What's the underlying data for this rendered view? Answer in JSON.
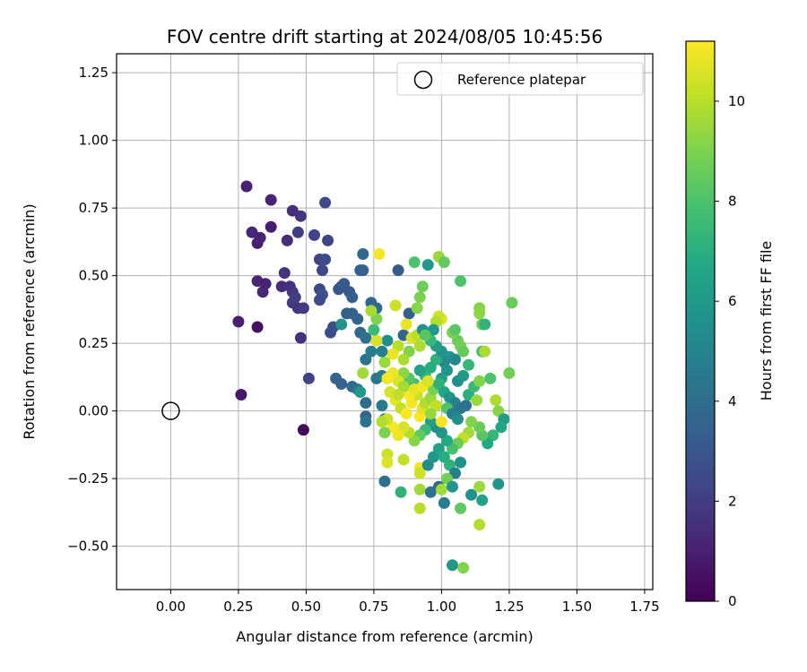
{
  "chart_data": {
    "type": "scatter",
    "title": "FOV centre drift starting at 2024/08/05 10:45:56",
    "xlabel": "Angular distance from reference (arcmin)",
    "ylabel": "Rotation from reference (arcmin)",
    "xlim": [
      -0.2,
      1.78
    ],
    "ylim": [
      -0.66,
      1.32
    ],
    "xticks": [
      "0.00",
      "0.25",
      "0.50",
      "0.75",
      "1.00",
      "1.25",
      "1.50",
      "1.75"
    ],
    "yticks": [
      "−0.50",
      "−0.25",
      "0.00",
      "0.25",
      "0.50",
      "0.75",
      "1.00",
      "1.25"
    ],
    "grid": true,
    "legend": {
      "placement": "top-right",
      "entries": [
        {
          "label": "Reference platepar",
          "marker": "hollow-circle"
        }
      ]
    },
    "reference_point": {
      "x": 0.0,
      "y": 0.0
    },
    "colorbar": {
      "label": "Hours from first FF file",
      "range": [
        0,
        11.2
      ],
      "ticks": [
        "0",
        "2",
        "4",
        "6",
        "8",
        "10"
      ],
      "colormap": "viridis"
    },
    "points": [
      [
        0.28,
        0.83,
        1.0
      ],
      [
        0.37,
        0.78,
        1.1
      ],
      [
        0.3,
        0.66,
        1.2
      ],
      [
        0.32,
        0.62,
        1.0
      ],
      [
        0.33,
        0.64,
        1.1
      ],
      [
        0.37,
        0.68,
        0.9
      ],
      [
        0.45,
        0.74,
        1.5
      ],
      [
        0.43,
        0.63,
        1.4
      ],
      [
        0.48,
        0.72,
        1.8
      ],
      [
        0.47,
        0.66,
        2.0
      ],
      [
        0.53,
        0.65,
        2.2
      ],
      [
        0.57,
        0.77,
        2.5
      ],
      [
        0.58,
        0.63,
        2.3
      ],
      [
        0.42,
        0.51,
        1.6
      ],
      [
        0.32,
        0.48,
        1.2
      ],
      [
        0.34,
        0.44,
        1.3
      ],
      [
        0.35,
        0.47,
        1.1
      ],
      [
        0.41,
        0.46,
        1.4
      ],
      [
        0.44,
        0.46,
        1.6
      ],
      [
        0.45,
        0.44,
        1.7
      ],
      [
        0.45,
        0.4,
        1.9
      ],
      [
        0.46,
        0.42,
        2.0
      ],
      [
        0.47,
        0.38,
        1.8
      ],
      [
        0.49,
        0.38,
        1.9
      ],
      [
        0.55,
        0.56,
        2.2
      ],
      [
        0.56,
        0.52,
        2.4
      ],
      [
        0.57,
        0.56,
        2.6
      ],
      [
        0.55,
        0.45,
        2.5
      ],
      [
        0.56,
        0.43,
        2.8
      ],
      [
        0.55,
        0.41,
        2.6
      ],
      [
        0.25,
        0.33,
        1.0
      ],
      [
        0.32,
        0.31,
        0.5
      ],
      [
        0.48,
        0.27,
        1.6
      ],
      [
        0.26,
        0.06,
        0.7
      ],
      [
        0.49,
        -0.07,
        0.3
      ],
      [
        0.51,
        0.12,
        2.2
      ],
      [
        0.59,
        0.29,
        2.6
      ],
      [
        0.6,
        0.31,
        2.7
      ],
      [
        0.62,
        0.45,
        2.9
      ],
      [
        0.63,
        0.46,
        3.0
      ],
      [
        0.64,
        0.47,
        3.2
      ],
      [
        0.66,
        0.44,
        3.1
      ],
      [
        0.67,
        0.42,
        3.4
      ],
      [
        0.7,
        0.52,
        3.3
      ],
      [
        0.71,
        0.52,
        3.5
      ],
      [
        0.71,
        0.58,
        3.7
      ],
      [
        0.74,
        0.4,
        3.6
      ],
      [
        0.76,
        0.38,
        3.9
      ],
      [
        0.63,
        0.32,
        5.8
      ],
      [
        0.65,
        0.36,
        3.3
      ],
      [
        0.67,
        0.36,
        3.4
      ],
      [
        0.69,
        0.34,
        3.6
      ],
      [
        0.7,
        0.29,
        3.9
      ],
      [
        0.72,
        0.27,
        4.1
      ],
      [
        0.72,
        0.19,
        4.3
      ],
      [
        0.74,
        0.22,
        4.6
      ],
      [
        0.76,
        0.12,
        4.4
      ],
      [
        0.78,
        0.13,
        4.8
      ],
      [
        0.61,
        0.12,
        3.6
      ],
      [
        0.63,
        0.1,
        3.5
      ],
      [
        0.67,
        0.09,
        3.8
      ],
      [
        0.69,
        0.08,
        4.2
      ],
      [
        0.7,
        0.07,
        6.0
      ],
      [
        0.71,
        0.14,
        9.6
      ],
      [
        0.72,
        0.03,
        4.0
      ],
      [
        0.72,
        -0.02,
        3.7
      ],
      [
        0.72,
        -0.04,
        4.2
      ],
      [
        0.78,
        0.02,
        4.6
      ],
      [
        0.79,
        -0.03,
        5.0
      ],
      [
        0.84,
        0.52,
        3.1
      ],
      [
        0.88,
        0.36,
        3.3
      ],
      [
        0.86,
        0.28,
        3.6
      ],
      [
        0.77,
        0.58,
        11.0
      ],
      [
        0.83,
        0.39,
        10.4
      ],
      [
        0.87,
        0.32,
        10.8
      ],
      [
        0.89,
        0.27,
        10.6
      ],
      [
        0.91,
        0.28,
        10.0
      ],
      [
        0.92,
        0.24,
        9.8
      ],
      [
        0.95,
        0.54,
        6.0
      ],
      [
        0.99,
        0.57,
        9.5
      ],
      [
        1.01,
        0.55,
        8.5
      ],
      [
        1.0,
        0.34,
        10.7
      ],
      [
        0.99,
        0.35,
        10.4
      ],
      [
        0.98,
        0.33,
        9.9
      ],
      [
        0.9,
        0.55,
        8.0
      ],
      [
        0.93,
        0.46,
        8.7
      ],
      [
        0.92,
        0.42,
        9.0
      ],
      [
        0.91,
        0.38,
        9.2
      ],
      [
        0.93,
        0.3,
        5.5
      ],
      [
        0.97,
        0.3,
        6.0
      ],
      [
        1.07,
        0.48,
        8.0
      ],
      [
        1.14,
        0.38,
        9.1
      ],
      [
        1.14,
        0.36,
        9.3
      ],
      [
        1.15,
        0.32,
        8.8
      ],
      [
        1.16,
        0.32,
        7.2
      ],
      [
        1.26,
        0.4,
        8.6
      ],
      [
        1.06,
        0.26,
        8.6
      ],
      [
        1.07,
        0.24,
        8.8
      ],
      [
        1.08,
        0.22,
        8.5
      ],
      [
        1.15,
        0.22,
        7.6
      ],
      [
        1.16,
        0.22,
        9.8
      ],
      [
        1.04,
        0.29,
        9.0
      ],
      [
        1.05,
        0.3,
        8.3
      ],
      [
        1.03,
        0.2,
        6.0
      ],
      [
        1.01,
        0.18,
        5.4
      ],
      [
        1.02,
        0.15,
        5.7
      ],
      [
        1.0,
        0.12,
        6.3
      ],
      [
        0.98,
        0.19,
        7.1
      ],
      [
        0.96,
        0.16,
        6.9
      ],
      [
        0.94,
        0.13,
        7.3
      ],
      [
        0.92,
        0.15,
        6.5
      ],
      [
        0.9,
        0.1,
        7.8
      ],
      [
        0.88,
        0.12,
        8.2
      ],
      [
        0.86,
        0.14,
        9.3
      ],
      [
        0.84,
        0.11,
        10.6
      ],
      [
        0.82,
        0.14,
        10.9
      ],
      [
        0.8,
        0.12,
        11.0
      ],
      [
        0.81,
        0.07,
        10.5
      ],
      [
        0.83,
        0.04,
        10.8
      ],
      [
        0.85,
        0.01,
        10.2
      ],
      [
        0.87,
        -0.01,
        11.1
      ],
      [
        0.89,
        0.03,
        11.0
      ],
      [
        0.91,
        0.06,
        10.3
      ],
      [
        0.92,
        -0.02,
        11.2
      ],
      [
        0.93,
        0.01,
        10.7
      ],
      [
        0.94,
        0.03,
        9.9
      ],
      [
        0.96,
        0.05,
        9.5
      ],
      [
        0.97,
        0.08,
        8.9
      ],
      [
        0.99,
        0.1,
        7.2
      ],
      [
        1.01,
        0.07,
        6.6
      ],
      [
        1.03,
        0.05,
        5.8
      ],
      [
        1.05,
        0.03,
        5.0
      ],
      [
        1.07,
        0.01,
        4.5
      ],
      [
        1.09,
        0.02,
        4.2
      ],
      [
        1.1,
        0.06,
        7.0
      ],
      [
        1.12,
        0.09,
        7.5
      ],
      [
        1.14,
        0.11,
        9.1
      ],
      [
        1.18,
        0.12,
        8.0
      ],
      [
        1.25,
        0.14,
        8.8
      ],
      [
        1.13,
        0.04,
        9.5
      ],
      [
        1.06,
        0.11,
        5.5
      ],
      [
        1.08,
        0.13,
        6.1
      ],
      [
        1.1,
        0.17,
        7.4
      ],
      [
        1.05,
        0.19,
        5.2
      ],
      [
        1.0,
        0.22,
        5.8
      ],
      [
        0.98,
        0.24,
        6.2
      ],
      [
        0.96,
        0.26,
        7.4
      ],
      [
        0.94,
        0.28,
        8.3
      ],
      [
        0.88,
        0.22,
        9.1
      ],
      [
        0.86,
        0.19,
        9.8
      ],
      [
        0.84,
        0.24,
        10.0
      ],
      [
        0.82,
        0.21,
        10.9
      ],
      [
        0.79,
        0.18,
        9.5
      ],
      [
        0.78,
        0.22,
        4.9
      ],
      [
        0.8,
        0.26,
        5.5
      ],
      [
        0.76,
        0.26,
        10.5
      ],
      [
        0.75,
        0.3,
        7.6
      ],
      [
        0.76,
        0.34,
        9.0
      ],
      [
        0.74,
        0.37,
        9.7
      ],
      [
        1.2,
        0.04,
        9.8
      ],
      [
        1.21,
        0.0,
        9.2
      ],
      [
        1.23,
        -0.03,
        6.2
      ],
      [
        1.22,
        -0.06,
        6.6
      ],
      [
        1.19,
        -0.09,
        7.4
      ],
      [
        1.17,
        -0.12,
        6.8
      ],
      [
        1.15,
        -0.09,
        8.3
      ],
      [
        1.14,
        -0.06,
        8.6
      ],
      [
        1.11,
        -0.04,
        9.1
      ],
      [
        1.1,
        -0.08,
        9.6
      ],
      [
        1.08,
        -0.1,
        10.1
      ],
      [
        1.06,
        -0.12,
        8.7
      ],
      [
        1.04,
        -0.14,
        7.9
      ],
      [
        1.02,
        -0.11,
        6.8
      ],
      [
        1.0,
        -0.08,
        5.9
      ],
      [
        0.98,
        -0.06,
        5.5
      ],
      [
        0.96,
        -0.04,
        6.3
      ],
      [
        0.94,
        -0.07,
        7.6
      ],
      [
        0.92,
        -0.09,
        8.4
      ],
      [
        0.9,
        -0.11,
        9.2
      ],
      [
        0.88,
        -0.08,
        10.0
      ],
      [
        0.86,
        -0.06,
        10.5
      ],
      [
        0.84,
        -0.09,
        10.9
      ],
      [
        0.82,
        -0.06,
        11.1
      ],
      [
        0.8,
        -0.03,
        10.4
      ],
      [
        0.79,
        -0.08,
        9.0
      ],
      [
        0.78,
        -0.04,
        9.9
      ],
      [
        0.8,
        -0.16,
        10.3
      ],
      [
        0.8,
        -0.19,
        10.6
      ],
      [
        0.86,
        -0.18,
        10.2
      ],
      [
        0.92,
        -0.21,
        11.0
      ],
      [
        0.92,
        -0.23,
        10.4
      ],
      [
        0.95,
        -0.2,
        5.4
      ],
      [
        0.97,
        -0.17,
        5.9
      ],
      [
        0.99,
        -0.14,
        6.4
      ],
      [
        1.01,
        -0.17,
        6.9
      ],
      [
        1.03,
        -0.2,
        7.2
      ],
      [
        1.05,
        -0.23,
        4.8
      ],
      [
        1.07,
        -0.19,
        5.6
      ],
      [
        0.79,
        -0.26,
        4.1
      ],
      [
        0.85,
        -0.3,
        7.2
      ],
      [
        0.92,
        -0.29,
        9.6
      ],
      [
        0.96,
        -0.3,
        4.2
      ],
      [
        0.99,
        -0.28,
        3.9
      ],
      [
        1.0,
        -0.29,
        9.6
      ],
      [
        1.02,
        -0.25,
        8.8
      ],
      [
        1.04,
        -0.28,
        5.8
      ],
      [
        1.01,
        -0.34,
        4.6
      ],
      [
        1.07,
        -0.36,
        8.4
      ],
      [
        1.11,
        -0.31,
        5.6
      ],
      [
        1.14,
        -0.28,
        9.5
      ],
      [
        1.15,
        -0.33,
        6.4
      ],
      [
        1.21,
        -0.27,
        5.8
      ],
      [
        0.92,
        -0.36,
        10.0
      ],
      [
        1.14,
        -0.42,
        9.9
      ],
      [
        1.04,
        -0.57,
        5.9
      ],
      [
        1.08,
        -0.58,
        9.1
      ],
      [
        1.0,
        -0.04,
        11.0
      ],
      [
        0.98,
        0.02,
        10.1
      ],
      [
        0.96,
        -0.01,
        9.4
      ],
      [
        1.02,
        0.01,
        8.1
      ],
      [
        1.04,
        -0.01,
        4.8
      ],
      [
        1.06,
        -0.03,
        5.4
      ],
      [
        0.88,
        0.06,
        11.2
      ],
      [
        0.9,
        0.08,
        10.8
      ],
      [
        0.93,
        0.09,
        11.0
      ],
      [
        0.95,
        0.11,
        10.6
      ],
      [
        0.86,
        0.09,
        9.7
      ],
      [
        0.84,
        0.06,
        10.1
      ]
    ]
  }
}
